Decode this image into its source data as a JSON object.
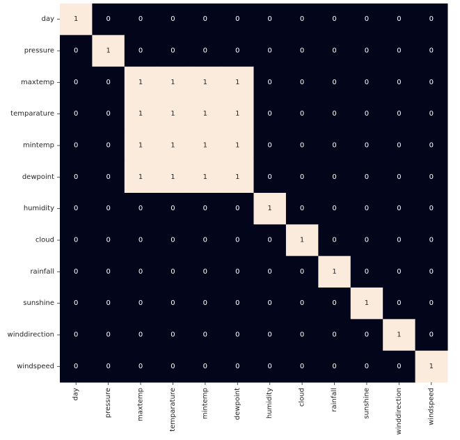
{
  "chart_data": {
    "type": "heatmap",
    "title": "",
    "xlabel": "",
    "ylabel": "",
    "rows": [
      "day",
      "pressure",
      "maxtemp",
      "temparature",
      "mintemp",
      "dewpoint",
      "humidity",
      "cloud",
      "rainfall",
      "sunshine",
      "winddirection",
      "windspeed"
    ],
    "columns": [
      "day",
      "pressure",
      "maxtemp",
      "temparature",
      "mintemp",
      "dewpoint",
      "humidity",
      "cloud",
      "rainfall",
      "sunshine",
      "winddirection",
      "windspeed"
    ],
    "values": [
      [
        1,
        0,
        0,
        0,
        0,
        0,
        0,
        0,
        0,
        0,
        0,
        0
      ],
      [
        0,
        1,
        0,
        0,
        0,
        0,
        0,
        0,
        0,
        0,
        0,
        0
      ],
      [
        0,
        0,
        1,
        1,
        1,
        1,
        0,
        0,
        0,
        0,
        0,
        0
      ],
      [
        0,
        0,
        1,
        1,
        1,
        1,
        0,
        0,
        0,
        0,
        0,
        0
      ],
      [
        0,
        0,
        1,
        1,
        1,
        1,
        0,
        0,
        0,
        0,
        0,
        0
      ],
      [
        0,
        0,
        1,
        1,
        1,
        1,
        0,
        0,
        0,
        0,
        0,
        0
      ],
      [
        0,
        0,
        0,
        0,
        0,
        0,
        1,
        0,
        0,
        0,
        0,
        0
      ],
      [
        0,
        0,
        0,
        0,
        0,
        0,
        0,
        1,
        0,
        0,
        0,
        0
      ],
      [
        0,
        0,
        0,
        0,
        0,
        0,
        0,
        0,
        1,
        0,
        0,
        0
      ],
      [
        0,
        0,
        0,
        0,
        0,
        0,
        0,
        0,
        0,
        1,
        0,
        0
      ],
      [
        0,
        0,
        0,
        0,
        0,
        0,
        0,
        0,
        0,
        0,
        1,
        0
      ],
      [
        0,
        0,
        0,
        0,
        0,
        0,
        0,
        0,
        0,
        0,
        0,
        1
      ]
    ],
    "annotated": true,
    "colorbar": false,
    "colors": {
      "low": "#03051a",
      "high": "#faebdd",
      "low_text": "#ffffff",
      "high_text": "#262626"
    }
  }
}
